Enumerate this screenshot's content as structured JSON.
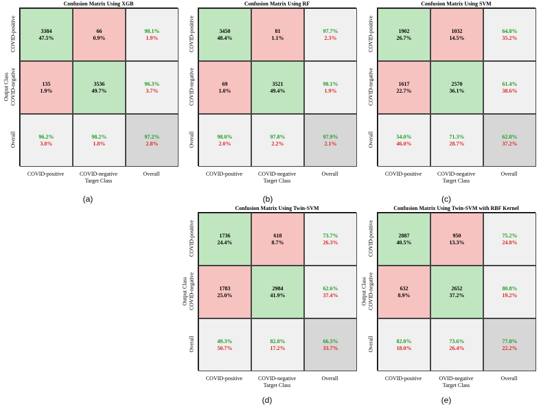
{
  "chart_data": [
    {
      "type": "heatmap",
      "title": "Confusion Matrix Using XGB",
      "subfig": "(a)",
      "xlabel": "Target Class",
      "ylabel": "Output Class",
      "xticks": [
        "COVID-positive",
        "COVID-negative",
        "Overall"
      ],
      "yticks": [
        "COVID-positive",
        "COVID-negative",
        "Overall"
      ],
      "cells": [
        [
          {
            "main": "3384",
            "sub": "47.5%"
          },
          {
            "main": "66",
            "sub": "0.9%"
          },
          {
            "main": "98.1%",
            "sub": "1.9%"
          }
        ],
        [
          {
            "main": "135",
            "sub": "1.9%"
          },
          {
            "main": "3536",
            "sub": "49.7%"
          },
          {
            "main": "96.3%",
            "sub": "3.7%"
          }
        ],
        [
          {
            "main": "96.2%",
            "sub": "3.8%"
          },
          {
            "main": "98.2%",
            "sub": "1.8%"
          },
          {
            "main": "97.2%",
            "sub": "2.8%"
          }
        ]
      ]
    },
    {
      "type": "heatmap",
      "title": "Confusion Matrix Using RF",
      "subfig": "(b)",
      "xlabel": "Target Class",
      "ylabel": "",
      "xticks": [
        "COVID-positive",
        "COVID-negative",
        "Overall"
      ],
      "yticks": [
        "COVID-positive",
        "COVID-negative",
        "Overall"
      ],
      "cells": [
        [
          {
            "main": "3450",
            "sub": "48.4%"
          },
          {
            "main": "81",
            "sub": "1.1%"
          },
          {
            "main": "97.7%",
            "sub": "2.3%"
          }
        ],
        [
          {
            "main": "69",
            "sub": "1.0%"
          },
          {
            "main": "3521",
            "sub": "49.4%"
          },
          {
            "main": "98.1%",
            "sub": "1.9%"
          }
        ],
        [
          {
            "main": "98.0%",
            "sub": "2.0%"
          },
          {
            "main": "97.8%",
            "sub": "2.2%"
          },
          {
            "main": "97.9%",
            "sub": "2.1%"
          }
        ]
      ]
    },
    {
      "type": "heatmap",
      "title": "Confusion Matrix Using SVM",
      "subfig": "(c)",
      "xlabel": "Target Class",
      "ylabel": "",
      "xticks": [
        "COVID-positive",
        "COVID-negative",
        "Overall"
      ],
      "yticks": [
        "COVID-positive",
        "COVID-negative",
        "Overall"
      ],
      "cells": [
        [
          {
            "main": "1902",
            "sub": "26.7%"
          },
          {
            "main": "1032",
            "sub": "14.5%"
          },
          {
            "main": "64.8%",
            "sub": "35.2%"
          }
        ],
        [
          {
            "main": "1617",
            "sub": "22.7%"
          },
          {
            "main": "2570",
            "sub": "36.1%"
          },
          {
            "main": "61.4%",
            "sub": "38.6%"
          }
        ],
        [
          {
            "main": "54.0%",
            "sub": "46.0%"
          },
          {
            "main": "71.3%",
            "sub": "28.7%"
          },
          {
            "main": "62.8%",
            "sub": "37.2%"
          }
        ]
      ]
    },
    {
      "type": "heatmap",
      "title": "Confusion Matrix Using Twin-SVM",
      "subfig": "(d)",
      "xlabel": "Target Class",
      "ylabel": "Output Class",
      "xticks": [
        "COVID-positive",
        "COVID-negative",
        "Overall"
      ],
      "yticks": [
        "COVID-positive",
        "COVID-negative",
        "Overall"
      ],
      "cells": [
        [
          {
            "main": "1736",
            "sub": "24.4%"
          },
          {
            "main": "618",
            "sub": "8.7%"
          },
          {
            "main": "73.7%",
            "sub": "26.3%"
          }
        ],
        [
          {
            "main": "1783",
            "sub": "25.0%"
          },
          {
            "main": "2984",
            "sub": "41.9%"
          },
          {
            "main": "62.6%",
            "sub": "37.4%"
          }
        ],
        [
          {
            "main": "49.3%",
            "sub": "50.7%"
          },
          {
            "main": "82.8%",
            "sub": "17.2%"
          },
          {
            "main": "66.3%",
            "sub": "33.7%"
          }
        ]
      ]
    },
    {
      "type": "heatmap",
      "title": "Confusion Matrix Using Twin-SVM with RBF Kernel",
      "subfig": "(e)",
      "xlabel": "Target Class",
      "ylabel": "Output Class",
      "xticks": [
        "COVID-positive",
        "OVID-negative",
        "Overall"
      ],
      "yticks": [
        "COVID-positive",
        "COVID-negative",
        "Overall"
      ],
      "cells": [
        [
          {
            "main": "2887",
            "sub": "40.5%"
          },
          {
            "main": "950",
            "sub": "13.3%"
          },
          {
            "main": "75.2%",
            "sub": "24.8%"
          }
        ],
        [
          {
            "main": "632",
            "sub": "8.9%"
          },
          {
            "main": "2652",
            "sub": "37.2%"
          },
          {
            "main": "80.8%",
            "sub": "19.2%"
          }
        ],
        [
          {
            "main": "82.0%",
            "sub": "18.0%"
          },
          {
            "main": "73.6%",
            "sub": "26.4%"
          },
          {
            "main": "77.8%",
            "sub": "22.2%"
          }
        ]
      ]
    }
  ],
  "colors": {
    "correct": "#c0e6c0",
    "incorrect": "#f6c3c0",
    "summary": "#f0f0f0",
    "overall": "#d7d7d7",
    "pct_good": "#1a9a1a",
    "pct_bad": "#e02020"
  }
}
